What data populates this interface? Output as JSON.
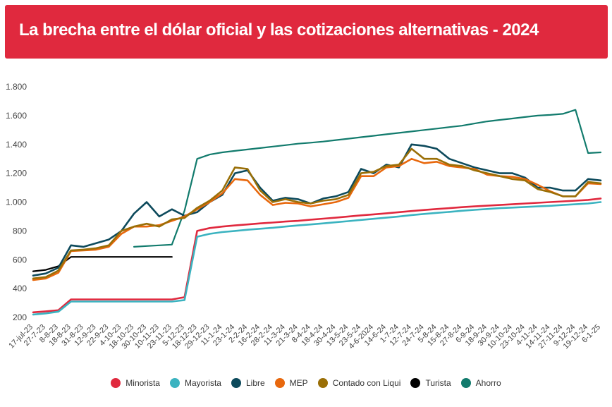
{
  "title": "La brecha entre el dólar oficial y las cotizaciones alternativas - 2024",
  "chart_data": {
    "type": "line",
    "title": "La brecha entre el dólar oficial y las cotizaciones alternativas - 2024",
    "xlabel": "",
    "ylabel": "",
    "ylim": [
      200,
      1800
    ],
    "yticks": [
      200,
      400,
      600,
      800,
      1000,
      1200,
      1400,
      1600,
      1800
    ],
    "ytick_labels": [
      "200",
      "400",
      "600",
      "800",
      "1.000",
      "1.200",
      "1.400",
      "1.600",
      "1.800"
    ],
    "grid": false,
    "legend_position": "bottom",
    "categories": [
      "17-jul-23",
      "27-7-23",
      "8-8-23",
      "18-8-23",
      "31-8-23",
      "12-9-23",
      "22-9-23",
      "4-10-23",
      "18-10-23",
      "30-10-23",
      "10-11-23",
      "23-11-23",
      "5-12-23",
      "18-12-23",
      "29-12-23",
      "11-1-24",
      "23-1-24",
      "2-2-24",
      "16-2-24",
      "28-2-24",
      "11-3-24",
      "21-3-24",
      "8-4-24",
      "18-4-24",
      "30-4-24",
      "13-5-24",
      "23-5-24",
      "4-6-2024",
      "14-6-24",
      "1-7-24",
      "12-7-24",
      "24-7-24",
      "5-8-24",
      "15-8-24",
      "27-8-24",
      "6-9-24",
      "18-9-24",
      "30-9-24",
      "10-10-24",
      "23-10-24",
      "4-11-24",
      "14-11-24",
      "27-11-24",
      "9-12-24",
      "19-12-24",
      "6-1-25"
    ],
    "series": [
      {
        "name": "Minorista",
        "color": "#e0293e",
        "values": [
          235,
          242,
          250,
          325,
          325,
          325,
          325,
          325,
          325,
          325,
          325,
          325,
          340,
          800,
          820,
          830,
          838,
          845,
          852,
          858,
          865,
          870,
          878,
          885,
          892,
          900,
          908,
          915,
          922,
          930,
          938,
          945,
          952,
          958,
          965,
          970,
          975,
          980,
          985,
          990,
          995,
          1000,
          1005,
          1010,
          1015,
          1025
        ]
      },
      {
        "name": "Mayorista",
        "color": "#3bb3c0",
        "values": [
          220,
          228,
          240,
          310,
          310,
          310,
          310,
          310,
          310,
          310,
          310,
          310,
          320,
          760,
          780,
          792,
          800,
          808,
          815,
          822,
          830,
          838,
          845,
          852,
          860,
          868,
          876,
          884,
          892,
          900,
          910,
          918,
          925,
          932,
          940,
          946,
          952,
          958,
          962,
          966,
          970,
          974,
          980,
          985,
          990,
          1000
        ]
      },
      {
        "name": "Libre",
        "color": "#0d4a5c",
        "values": [
          490,
          505,
          545,
          700,
          690,
          715,
          740,
          800,
          920,
          1000,
          900,
          950,
          905,
          930,
          1000,
          1050,
          1200,
          1220,
          1100,
          1010,
          1030,
          1020,
          990,
          1025,
          1040,
          1070,
          1230,
          1200,
          1260,
          1240,
          1400,
          1390,
          1370,
          1300,
          1270,
          1240,
          1220,
          1200,
          1200,
          1170,
          1100,
          1100,
          1080,
          1080,
          1160,
          1150
        ]
      },
      {
        "name": "MEP",
        "color": "#e8680d",
        "values": [
          460,
          470,
          510,
          660,
          665,
          670,
          690,
          780,
          830,
          830,
          840,
          870,
          900,
          950,
          1000,
          1060,
          1160,
          1150,
          1050,
          980,
          995,
          990,
          970,
          985,
          1000,
          1030,
          1180,
          1180,
          1240,
          1250,
          1300,
          1270,
          1280,
          1250,
          1240,
          1230,
          1190,
          1180,
          1175,
          1160,
          1120,
          1075,
          1040,
          1040,
          1130,
          1125
        ]
      },
      {
        "name": "Contado con Liqui",
        "color": "#9a6f07",
        "values": [
          470,
          480,
          525,
          665,
          670,
          680,
          700,
          800,
          830,
          850,
          830,
          880,
          890,
          960,
          1010,
          1080,
          1240,
          1230,
          1080,
          1000,
          1020,
          1000,
          990,
          1010,
          1020,
          1050,
          1200,
          1210,
          1250,
          1260,
          1370,
          1300,
          1300,
          1260,
          1250,
          1220,
          1200,
          1180,
          1160,
          1150,
          1090,
          1070,
          1040,
          1040,
          1140,
          1130
        ]
      },
      {
        "name": "Turista",
        "color": "#000000",
        "values": [
          520,
          530,
          555,
          620,
          620,
          620,
          620,
          620,
          620,
          620,
          620,
          620,
          null,
          null,
          null,
          null,
          null,
          null,
          null,
          null,
          null,
          null,
          null,
          null,
          null,
          null,
          null,
          null,
          null,
          null,
          null,
          null,
          null,
          null,
          null,
          null,
          null,
          null,
          null,
          null,
          null,
          null,
          null,
          null,
          null,
          null
        ]
      },
      {
        "name": "Ahorro",
        "color": "#127b6d",
        "values": [
          null,
          null,
          null,
          null,
          null,
          null,
          null,
          null,
          690,
          695,
          700,
          705,
          940,
          1300,
          1330,
          1345,
          1355,
          1365,
          1375,
          1385,
          1395,
          1405,
          1412,
          1420,
          1430,
          1440,
          1450,
          1460,
          1470,
          1480,
          1490,
          1500,
          1510,
          1520,
          1530,
          1545,
          1560,
          1570,
          1580,
          1590,
          1600,
          1605,
          1612,
          1640,
          1340,
          1345
        ]
      }
    ]
  }
}
